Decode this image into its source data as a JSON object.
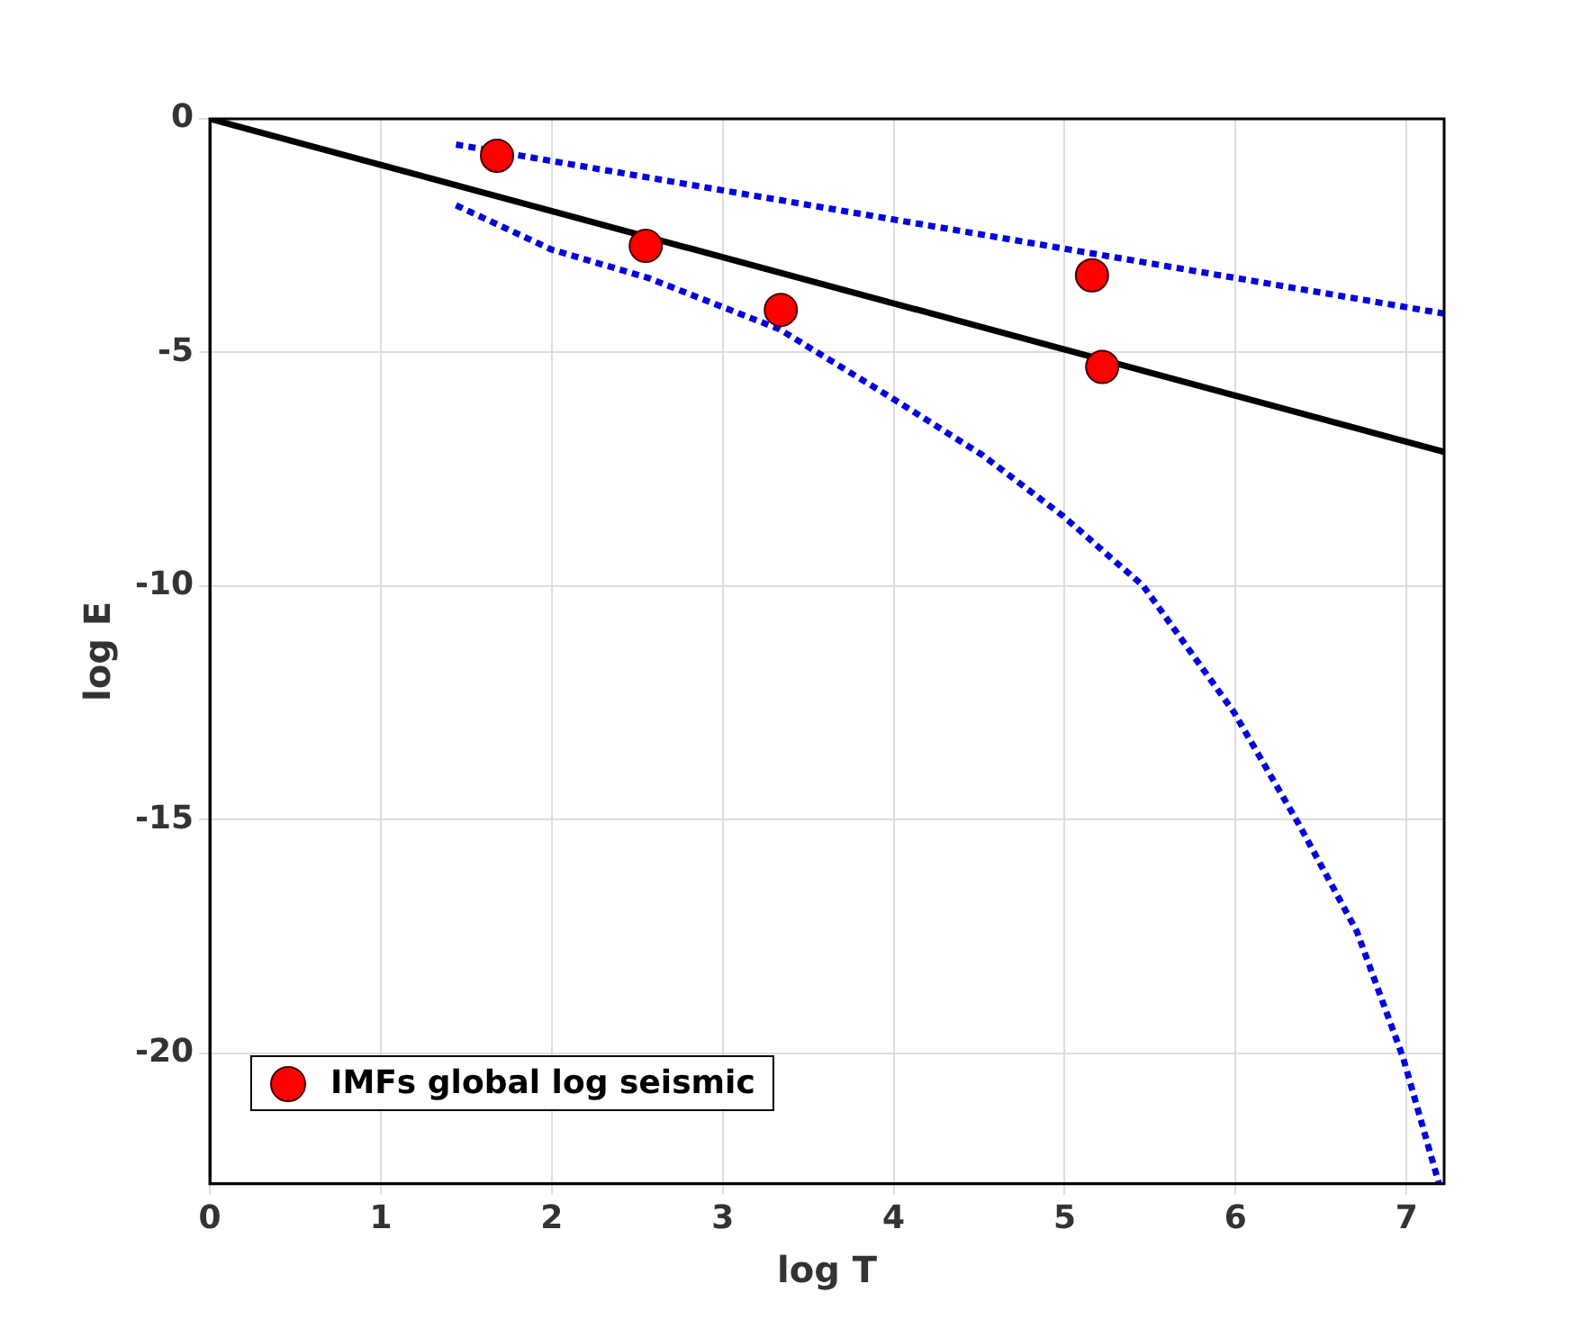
{
  "chart_data": {
    "type": "scatter",
    "xlabel": "log T",
    "ylabel": "log E",
    "xlim": [
      0,
      7.22
    ],
    "ylim": [
      -22.8,
      0
    ],
    "xticks": [
      0,
      1,
      2,
      3,
      4,
      5,
      6,
      7
    ],
    "yticks": [
      -20,
      -15,
      -10,
      -5,
      0
    ],
    "grid": true,
    "legend": "bottom left",
    "marker": "circle",
    "series": [
      {
        "type": "line",
        "color": "#000000",
        "line_style": "solid",
        "marker": "none",
        "x": [
          0,
          7.22
        ],
        "values": [
          0,
          -7.13
        ]
      },
      {
        "type": "line",
        "color": "#0000dd",
        "line_style": "dotted",
        "marker": "none",
        "x": [
          1.44,
          3,
          5,
          7.22
        ],
        "values": [
          -0.55,
          -1.53,
          -2.78,
          -4.17
        ]
      },
      {
        "type": "line",
        "color": "#0000dd",
        "line_style": "dotted",
        "marker": "none",
        "x": [
          1.44,
          2,
          2.56,
          3.33,
          4,
          4.52,
          4.99,
          5.46,
          5.99,
          6.37,
          6.71,
          6.98,
          7.19
        ],
        "values": [
          -1.85,
          -2.8,
          -3.4,
          -4.5,
          -6.0,
          -7.2,
          -8.5,
          -10.0,
          -12.7,
          -15.1,
          -17.4,
          -20.1,
          -22.8
        ]
      },
      {
        "type": "scatter",
        "name": "IMFs global log seismic",
        "color": "#ff0000",
        "x": [
          1.68,
          2.55,
          3.34,
          5.16,
          5.22
        ],
        "values": [
          -0.79,
          -2.72,
          -4.09,
          -3.35,
          -5.31
        ]
      }
    ]
  }
}
